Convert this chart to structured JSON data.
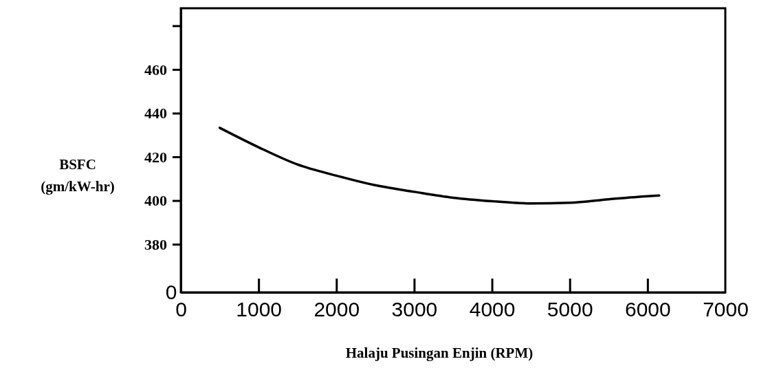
{
  "chart_data": {
    "type": "line",
    "xlabel": "Halaju Pusingan Enjin (RPM)",
    "ylabel": "BSFC\n(gm/kW-hr)",
    "annotations": [
      "0"
    ],
    "x": [
      500,
      1000,
      1500,
      2000,
      2500,
      3000,
      3500,
      4000,
      4500,
      5000,
      5500,
      6000,
      6150
    ],
    "series": [
      {
        "color": "#000000",
        "values": [
          433.3,
          424.4,
          416.5,
          411.4,
          407,
          404,
          401.3,
          399.7,
          398.7,
          399,
          400.6,
          402,
          402.3
        ]
      }
    ],
    "xlim": [
      0,
      7000
    ],
    "xticks": [
      0,
      1000,
      2000,
      3000,
      4000,
      5000,
      6000,
      7000
    ],
    "ylim": [
      358,
      488
    ],
    "yticks": [
      380,
      400,
      420,
      440,
      460,
      {
        "value": 480,
        "label": null
      }
    ],
    "grid": false,
    "marker": "none",
    "line_style": "solid"
  }
}
